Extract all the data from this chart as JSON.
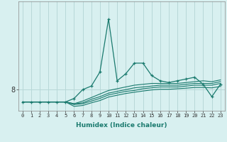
{
  "xlabel": "Humidex (Indice chaleur)",
  "x_values": [
    0,
    1,
    2,
    3,
    4,
    5,
    6,
    7,
    8,
    9,
    10,
    11,
    12,
    13,
    14,
    15,
    16,
    17,
    18,
    19,
    20,
    21,
    22,
    23
  ],
  "line1": [
    7.3,
    7.3,
    7.3,
    7.3,
    7.3,
    7.3,
    7.5,
    8.0,
    8.2,
    9.0,
    12.0,
    8.5,
    8.9,
    9.5,
    9.5,
    8.8,
    8.5,
    8.4,
    8.5,
    8.6,
    8.7,
    8.3,
    7.6,
    8.3
  ],
  "line2": [
    7.3,
    7.3,
    7.3,
    7.3,
    7.3,
    7.3,
    7.2,
    7.35,
    7.55,
    7.75,
    7.95,
    8.05,
    8.15,
    8.25,
    8.3,
    8.35,
    8.35,
    8.35,
    8.35,
    8.4,
    8.45,
    8.5,
    8.45,
    8.55
  ],
  "line3": [
    7.3,
    7.3,
    7.3,
    7.3,
    7.3,
    7.3,
    7.2,
    7.25,
    7.45,
    7.6,
    7.8,
    7.9,
    8.0,
    8.1,
    8.15,
    8.2,
    8.25,
    8.25,
    8.25,
    8.3,
    8.35,
    8.35,
    8.35,
    8.45
  ],
  "line4": [
    7.3,
    7.3,
    7.3,
    7.3,
    7.3,
    7.3,
    7.15,
    7.2,
    7.35,
    7.5,
    7.7,
    7.8,
    7.9,
    7.95,
    8.05,
    8.1,
    8.15,
    8.15,
    8.15,
    8.2,
    8.25,
    8.25,
    8.25,
    8.35
  ],
  "line5": [
    7.3,
    7.3,
    7.3,
    7.3,
    7.3,
    7.3,
    7.05,
    7.1,
    7.25,
    7.38,
    7.58,
    7.68,
    7.78,
    7.85,
    7.92,
    7.98,
    8.02,
    8.02,
    8.05,
    8.08,
    8.12,
    8.12,
    8.1,
    8.18
  ],
  "line_color": "#1a7a6e",
  "bg_color": "#d8f0f0",
  "grid_color": "#b8d8d8",
  "ytick_val": 8,
  "ylim": [
    6.8,
    13.0
  ],
  "xlim": [
    -0.5,
    23.5
  ]
}
